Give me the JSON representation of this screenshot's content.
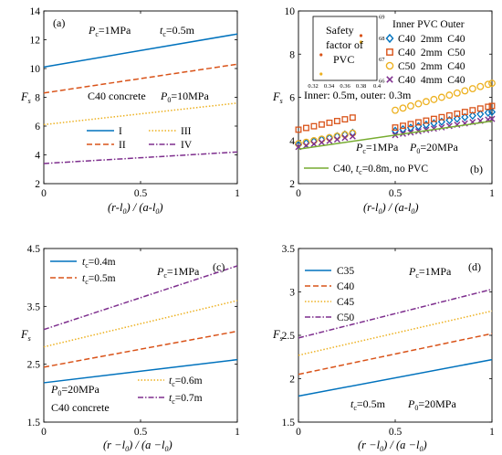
{
  "chart_data": [
    {
      "id": "a",
      "type": "line",
      "panel_label": "(a)",
      "xlabel": "(r-l0) / (a-l0)",
      "ylabel": "Fs",
      "xlim": [
        0,
        1
      ],
      "ylim": [
        2,
        14
      ],
      "xticks": [
        0,
        0.5,
        1
      ],
      "yticks": [
        2,
        4,
        6,
        8,
        10,
        12,
        14
      ],
      "annotations": [
        "Pc=1MPa",
        "tc=0.5m",
        "C40 concrete",
        "P0=10MPa"
      ],
      "legend_position": "bottom-center",
      "series": [
        {
          "name": "I",
          "color": "#0072BD",
          "style": "solid",
          "x": [
            0,
            1
          ],
          "y": [
            10.1,
            12.4
          ]
        },
        {
          "name": "II",
          "color": "#D95319",
          "style": "dashed",
          "x": [
            0,
            1
          ],
          "y": [
            8.3,
            10.3
          ]
        },
        {
          "name": "III",
          "color": "#EDB120",
          "style": "dotted",
          "x": [
            0,
            1
          ],
          "y": [
            6.1,
            7.6
          ]
        },
        {
          "name": "IV",
          "color": "#7E2F8E",
          "style": "dashdot",
          "x": [
            0,
            1
          ],
          "y": [
            3.4,
            4.2
          ]
        }
      ]
    },
    {
      "id": "b",
      "type": "scatter",
      "panel_label": "(b)",
      "xlabel": "(r-l0) / (a-l0)",
      "ylabel": "Fs",
      "xlim": [
        0,
        1
      ],
      "ylim": [
        2,
        10
      ],
      "xticks": [
        0,
        0.5,
        1
      ],
      "yticks": [
        2,
        4,
        6,
        8,
        10
      ],
      "annotations": [
        "Inner: 0.5m, outer: 0.3m",
        "Pc=1MPa",
        "P0=20MPa",
        "Safety factor of PVC"
      ],
      "legend_header": "Inner PVC Outer",
      "legend_position": "top-right",
      "series": [
        {
          "name": "C40  2mm  C40",
          "color": "#0072BD",
          "marker": "diamond",
          "x": [
            0,
            0.04,
            0.08,
            0.12,
            0.16,
            0.2,
            0.24,
            0.28,
            0.5,
            0.54,
            0.58,
            0.62,
            0.66,
            0.7,
            0.74,
            0.78,
            0.82,
            0.86,
            0.9,
            0.94,
            0.98,
            1.0
          ],
          "y": [
            3.8,
            3.88,
            3.96,
            4.04,
            4.12,
            4.2,
            4.28,
            4.36,
            4.45,
            4.52,
            4.59,
            4.66,
            4.73,
            4.8,
            4.87,
            4.94,
            5.01,
            5.08,
            5.15,
            5.22,
            5.29,
            5.32
          ]
        },
        {
          "name": "C40  2mm  C50",
          "color": "#D95319",
          "marker": "square",
          "x": [
            0,
            0.04,
            0.08,
            0.12,
            0.16,
            0.2,
            0.24,
            0.28,
            0.5,
            0.54,
            0.58,
            0.62,
            0.66,
            0.7,
            0.74,
            0.78,
            0.82,
            0.86,
            0.9,
            0.94,
            0.98,
            1.0
          ],
          "y": [
            4.5,
            4.58,
            4.66,
            4.74,
            4.82,
            4.9,
            4.98,
            5.06,
            4.6,
            4.68,
            4.76,
            4.84,
            4.92,
            5.0,
            5.08,
            5.16,
            5.24,
            5.32,
            5.4,
            5.48,
            5.56,
            5.6
          ]
        },
        {
          "name": "C50  2mm  C40",
          "color": "#EDB120",
          "marker": "circle",
          "x": [
            0,
            0.04,
            0.08,
            0.12,
            0.16,
            0.2,
            0.24,
            0.28,
            0.5,
            0.54,
            0.58,
            0.62,
            0.66,
            0.7,
            0.74,
            0.78,
            0.82,
            0.86,
            0.9,
            0.94,
            0.98,
            1.0
          ],
          "y": [
            3.85,
            3.92,
            3.99,
            4.06,
            4.13,
            4.2,
            4.27,
            4.34,
            5.4,
            5.5,
            5.6,
            5.7,
            5.8,
            5.9,
            6.0,
            6.1,
            6.2,
            6.3,
            6.4,
            6.5,
            6.6,
            6.65
          ]
        },
        {
          "name": "C40  4mm  C40",
          "color": "#7E2F8E",
          "marker": "x",
          "x": [
            0,
            0.04,
            0.08,
            0.12,
            0.16,
            0.2,
            0.24,
            0.28,
            0.5,
            0.54,
            0.58,
            0.62,
            0.66,
            0.7,
            0.74,
            0.78,
            0.82,
            0.86,
            0.9,
            0.94,
            0.98,
            1.0
          ],
          "y": [
            3.7,
            3.77,
            3.84,
            3.91,
            3.98,
            4.05,
            4.12,
            4.19,
            4.25,
            4.31,
            4.37,
            4.43,
            4.49,
            4.55,
            4.61,
            4.67,
            4.73,
            4.79,
            4.85,
            4.91,
            4.97,
            5.0
          ]
        },
        {
          "name": "C40, tc=0.8m, no PVC",
          "color": "#77AC30",
          "style": "solid",
          "x": [
            0,
            1
          ],
          "y": [
            3.6,
            4.9
          ]
        }
      ],
      "inset": {
        "xlim": [
          0.32,
          0.4
        ],
        "ylim": [
          66,
          69
        ],
        "xticks": [
          0.32,
          0.34,
          0.36,
          0.38,
          0.4
        ],
        "yticks": [
          66,
          67,
          68,
          69
        ],
        "points": [
          {
            "x": 0.33,
            "y": 67.2,
            "color": "#D95319"
          },
          {
            "x": 0.33,
            "y": 66.3,
            "color": "#EDB120"
          },
          {
            "x": 0.38,
            "y": 68.1,
            "color": "#D95319"
          },
          {
            "x": 0.38,
            "y": 67.8,
            "color": "#EDB120"
          }
        ]
      }
    },
    {
      "id": "c",
      "type": "line",
      "panel_label": "(c)",
      "xlabel": "(r −l0) / (a −l0)",
      "ylabel": "Fs",
      "xlim": [
        0,
        1
      ],
      "ylim": [
        1.5,
        4.5
      ],
      "xticks": [
        0,
        0.5,
        1
      ],
      "yticks": [
        1.5,
        2.5,
        3.5,
        4.5
      ],
      "annotations": [
        "Pc=1MPa",
        "P0=20MPa",
        "C40 concrete"
      ],
      "legend_position": "top-left / bottom-right",
      "series": [
        {
          "name": "tc=0.4m",
          "color": "#0072BD",
          "style": "solid",
          "x": [
            0,
            1
          ],
          "y": [
            2.18,
            2.58
          ]
        },
        {
          "name": "tc=0.5m",
          "color": "#D95319",
          "style": "dashed",
          "x": [
            0,
            1
          ],
          "y": [
            2.45,
            3.07
          ]
        },
        {
          "name": "tc=0.6m",
          "color": "#EDB120",
          "style": "dotted",
          "x": [
            0,
            1
          ],
          "y": [
            2.8,
            3.6
          ]
        },
        {
          "name": "tc=0.7m",
          "color": "#7E2F8E",
          "style": "dashdot",
          "x": [
            0,
            1
          ],
          "y": [
            3.1,
            4.2
          ]
        }
      ]
    },
    {
      "id": "d",
      "type": "line",
      "panel_label": "(d)",
      "xlabel": "(r −l0) / (a −l0)",
      "ylabel": "Fs",
      "xlim": [
        0,
        1
      ],
      "ylim": [
        1.5,
        3.5
      ],
      "xticks": [
        0,
        0.5,
        1
      ],
      "yticks": [
        1.5,
        2,
        2.5,
        3,
        3.5
      ],
      "annotations": [
        "Pc=1MPa",
        "tc=0.5m",
        "P0=20MPa"
      ],
      "legend_position": "top-left",
      "series": [
        {
          "name": "C35",
          "color": "#0072BD",
          "style": "solid",
          "x": [
            0,
            1
          ],
          "y": [
            1.8,
            2.22
          ]
        },
        {
          "name": "C40",
          "color": "#D95319",
          "style": "dashed",
          "x": [
            0,
            1
          ],
          "y": [
            2.05,
            2.52
          ]
        },
        {
          "name": "C45",
          "color": "#EDB120",
          "style": "dotted",
          "x": [
            0,
            1
          ],
          "y": [
            2.27,
            2.78
          ]
        },
        {
          "name": "C50",
          "color": "#7E2F8E",
          "style": "dashdot",
          "x": [
            0,
            1
          ],
          "y": [
            2.47,
            3.03
          ]
        }
      ]
    }
  ]
}
